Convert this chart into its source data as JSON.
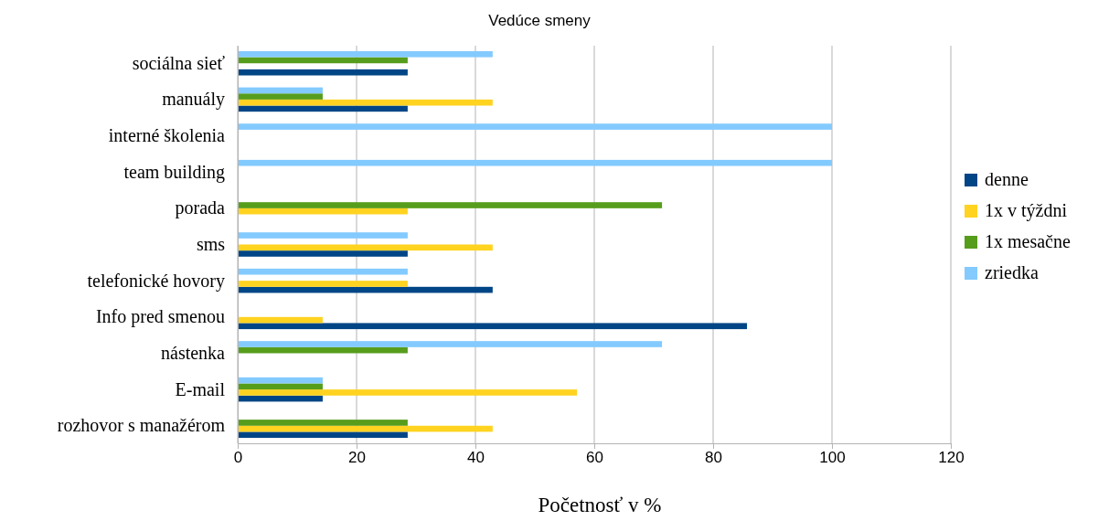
{
  "chart_data": {
    "type": "bar",
    "orientation": "horizontal",
    "title": "Vedúce smeny",
    "xlabel": "Početnosť v %",
    "categories": [
      "sociálna sieť",
      "manuály",
      "interné školenia",
      "team building",
      "porada",
      "sms",
      "telefonické hovory",
      "Info pred smenou",
      "nástenka",
      "E-mail",
      "rozhovor s manažérom"
    ],
    "series": [
      {
        "name": "denne",
        "color": "#004586",
        "values": [
          28.6,
          28.6,
          0,
          0,
          0,
          28.6,
          42.9,
          85.7,
          0,
          14.3,
          28.6
        ]
      },
      {
        "name": "1x v týždni",
        "color": "#ffd320",
        "values": [
          0,
          42.9,
          0,
          0,
          28.6,
          42.9,
          28.6,
          14.3,
          0,
          57.1,
          42.9
        ]
      },
      {
        "name": "1x mesačne",
        "color": "#579d1c",
        "values": [
          28.6,
          14.3,
          0,
          0,
          71.4,
          0,
          0,
          0,
          28.6,
          14.3,
          28.6
        ]
      },
      {
        "name": "zriedka",
        "color": "#83caff",
        "values": [
          42.9,
          14.3,
          100,
          100,
          0,
          28.6,
          28.6,
          0,
          71.4,
          14.3,
          0
        ]
      }
    ],
    "xlim": [
      0,
      120
    ],
    "xticks": [
      0,
      20,
      40,
      60,
      80,
      100,
      120
    ],
    "grid": "x",
    "legend": "right"
  }
}
